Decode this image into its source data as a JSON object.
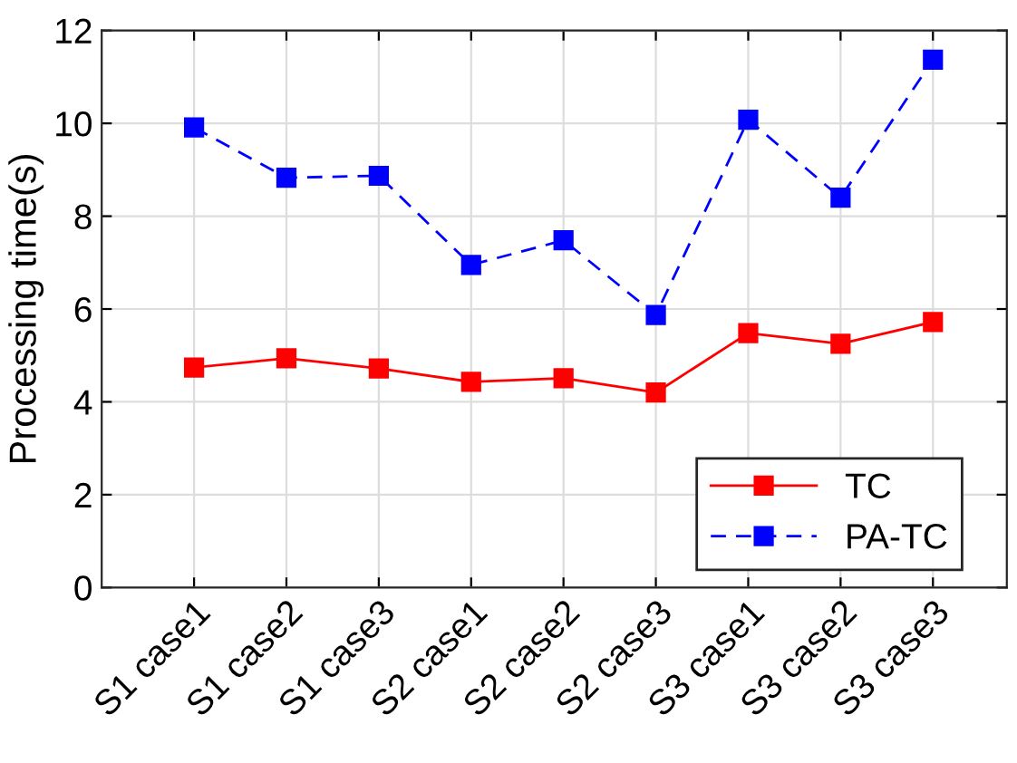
{
  "chart_data": {
    "type": "line",
    "ylabel": "Processing time(s)",
    "categories": [
      "S1 case1",
      "S1 case2",
      "S1 case3",
      "S2 case1",
      "S2 case2",
      "S2 case3",
      "S3 case1",
      "S3 case2",
      "S3 case3"
    ],
    "series": [
      {
        "name": "TC",
        "color": "#ff0000",
        "line_style": "solid",
        "values": [
          4.74,
          4.94,
          4.72,
          4.43,
          4.51,
          4.2,
          5.48,
          5.25,
          5.72
        ]
      },
      {
        "name": "PA-TC",
        "color": "#0000ff",
        "line_style": "dashed",
        "values": [
          9.91,
          8.83,
          8.87,
          6.95,
          7.48,
          5.87,
          10.08,
          8.4,
          11.37
        ]
      }
    ],
    "ylim": [
      0,
      12
    ],
    "yticks": [
      0,
      2,
      4,
      6,
      8,
      10,
      12
    ],
    "grid": true,
    "legend": "bottom right",
    "marker": "square"
  }
}
